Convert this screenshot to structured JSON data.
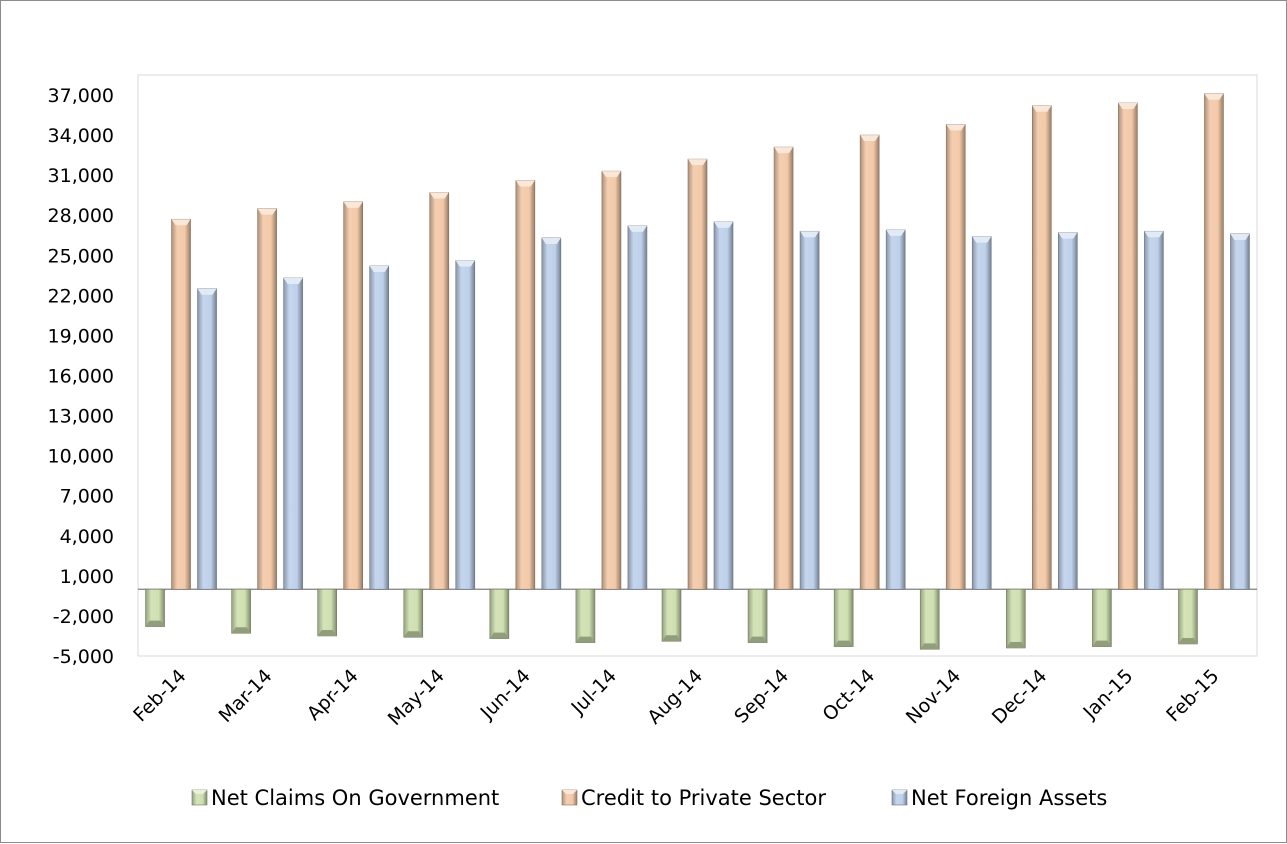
{
  "chart_data": {
    "type": "bar",
    "title": "",
    "xlabel": "",
    "ylabel": "",
    "categories": [
      "Feb-14",
      "Mar-14",
      "Apr-14",
      "May-14",
      "Jun-14",
      "Jul-14",
      "Aug-14",
      "Sep-14",
      "Oct-14",
      "Nov-14",
      "Dec-14",
      "Jan-15",
      "Feb-15"
    ],
    "y_ticks": [
      -5000,
      -2000,
      1000,
      4000,
      7000,
      10000,
      13000,
      16000,
      19000,
      22000,
      25000,
      28000,
      31000,
      34000,
      37000
    ],
    "y_tick_labels": [
      "-5,000",
      "-2,000",
      "1,000",
      "4,000",
      "7,000",
      "10,000",
      "13,000",
      "16,000",
      "19,000",
      "22,000",
      "25,000",
      "28,000",
      "31,000",
      "34,000",
      "37,000"
    ],
    "ylim": [
      -5000,
      38500
    ],
    "grid": false,
    "legend_position": "bottom",
    "series": [
      {
        "name": "Net Claims On Government",
        "color": "#cfe0b0",
        "values": [
          -2800,
          -3300,
          -3500,
          -3600,
          -3700,
          -4000,
          -3900,
          -4000,
          -4300,
          -4500,
          -4400,
          -4300,
          -4100
        ]
      },
      {
        "name": "Credit to Private Sector",
        "color": "#f3c9a8",
        "values": [
          27700,
          28500,
          29000,
          29700,
          30600,
          31300,
          32200,
          33100,
          34000,
          34800,
          36200,
          36400,
          37100
        ]
      },
      {
        "name": "Net Foreign Assets",
        "color": "#bed0ea",
        "values": [
          22500,
          23300,
          24200,
          24600,
          26300,
          27200,
          27500,
          26800,
          26900,
          26400,
          26700,
          26800,
          26600
        ]
      }
    ]
  }
}
